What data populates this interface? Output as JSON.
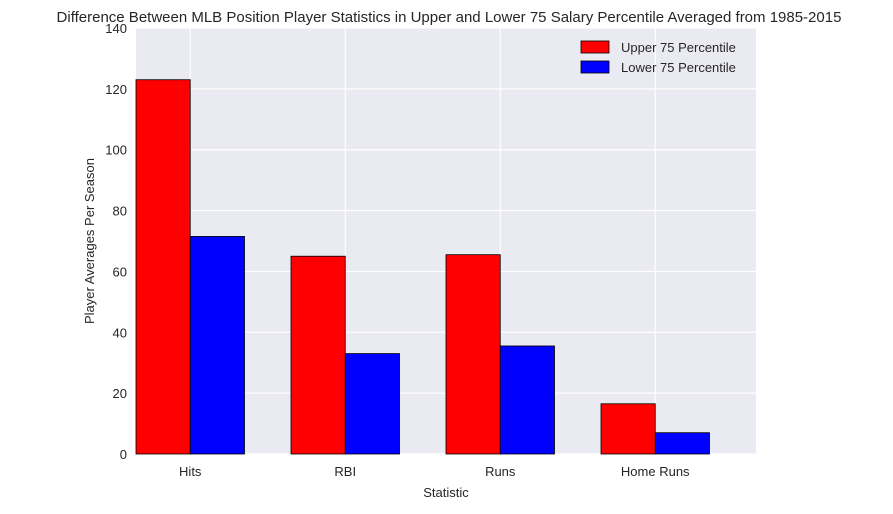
{
  "chart_data": {
    "type": "bar",
    "title": "Difference Between MLB Position Player Statistics in Upper and Lower 75 Salary Percentile Averaged from 1985-2015",
    "xlabel": "Statistic",
    "ylabel": "Player Averages Per Season",
    "categories": [
      "Hits",
      "RBI",
      "Runs",
      "Home Runs"
    ],
    "series": [
      {
        "name": "Upper 75 Percentile",
        "color": "#ff0000",
        "values": [
          123,
          65,
          65.5,
          16.5
        ]
      },
      {
        "name": "Lower 75 Percentile",
        "color": "#0000ff",
        "values": [
          71.5,
          33,
          35.5,
          7
        ]
      }
    ],
    "ylim": [
      0,
      140
    ],
    "yticks": [
      "0",
      "20",
      "40",
      "60",
      "80",
      "100",
      "120",
      "140"
    ],
    "grid": true,
    "legend_position": "top-right",
    "background_color": "#eaeaf2"
  }
}
